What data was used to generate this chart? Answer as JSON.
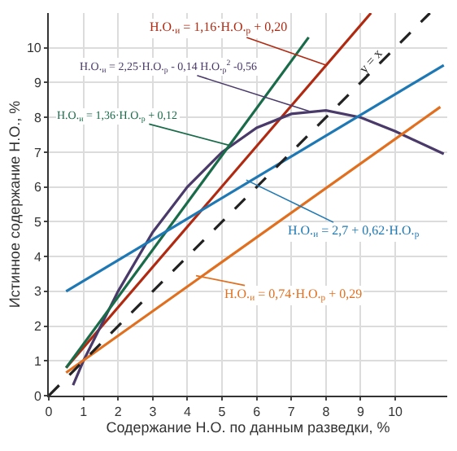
{
  "chart_data": {
    "type": "line",
    "xlabel": "Содержание Н.О. по данным разведки, %",
    "ylabel": "Истинное содержание Н.О., %",
    "xlim": [
      0,
      11.5
    ],
    "ylim": [
      0,
      11
    ],
    "xticks": [
      0,
      1,
      2,
      3,
      4,
      5,
      6,
      7,
      8,
      9,
      10
    ],
    "yticks": [
      0,
      1,
      2,
      3,
      4,
      5,
      6,
      7,
      8,
      9,
      10
    ],
    "grid": true,
    "marker": "none",
    "line_style": "solid",
    "series": [
      {
        "color": "#b02a12",
        "x": [
          0.5,
          9.3
        ],
        "values": [
          0.8,
          11.0
        ]
      },
      {
        "color": "#4a3a6a",
        "x": [
          0.7,
          1,
          2,
          3,
          4,
          5,
          6,
          7,
          8,
          9,
          10,
          11.4
        ],
        "values": [
          0.3,
          1.0,
          3.0,
          4.7,
          6.0,
          7.0,
          7.7,
          8.1,
          8.2,
          8.0,
          7.6,
          6.95
        ]
      },
      {
        "color": "#1a6b4a",
        "x": [
          0.5,
          7.5
        ],
        "values": [
          0.8,
          10.3
        ]
      },
      {
        "color": "#1e78b4",
        "x": [
          0.5,
          11.4
        ],
        "values": [
          3.0,
          9.5
        ]
      },
      {
        "color": "#e07020",
        "x": [
          0.5,
          11.3
        ],
        "values": [
          0.66,
          8.3
        ]
      },
      {
        "color": "#222222",
        "x": [
          0,
          11
        ],
        "values": [
          0,
          11
        ],
        "line_style": "dashed"
      }
    ],
    "annotations": [
      {
        "text": "Н.О.$_{и}$ = 1,16·Н.О.$_{р}$ + 0,20",
        "x": 8.0,
        "y": 9.5
      },
      {
        "text": "Н.О.$_{и}$ = 2,25·Н.О.$_{р}$ - 0,14 Н.О.$_{р}$$^{2}$ -0,56",
        "x": 7.6,
        "y": 8.15
      },
      {
        "text": "Н.О.$_{и}$ = 1,36·Н.О.$_{р}$ + 0,12",
        "x": 5.2,
        "y": 7.2
      },
      {
        "text": "Н.О.$_{и}$ = 2,7 + 0,62·Н.О.$_{р}$",
        "x": 5.7,
        "y": 6.2
      },
      {
        "text": "Н.О.$_{и}$ = 0,74·Н.О.$_{р}$ + 0,29",
        "x": 4.25,
        "y": 3.45
      },
      {
        "text": "y = x",
        "x": 9.3,
        "y": 9.6
      }
    ]
  }
}
